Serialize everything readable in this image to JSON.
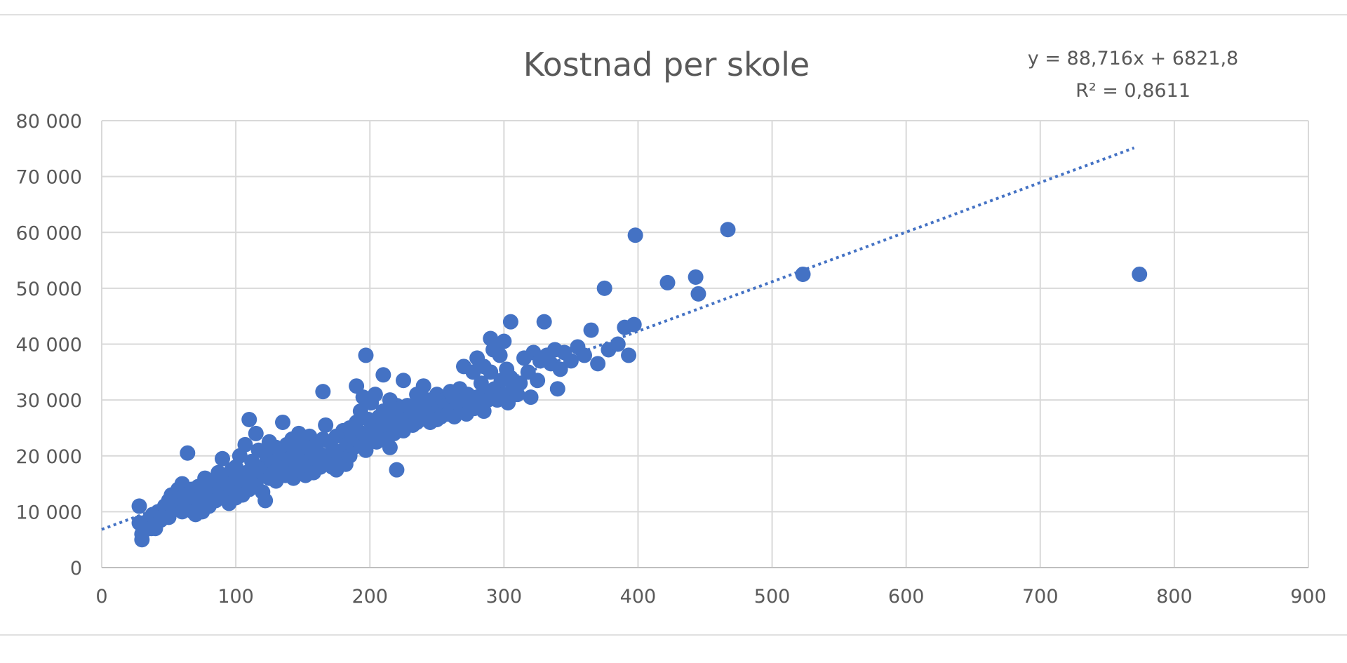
{
  "chart_data": {
    "type": "scatter",
    "title": "Kostnad per skole",
    "xlabel": "",
    "ylabel": "",
    "xlim": [
      0,
      900
    ],
    "ylim": [
      0,
      80000
    ],
    "x_ticks": [
      0,
      100,
      200,
      300,
      400,
      500,
      600,
      700,
      800,
      900
    ],
    "x_tick_labels": [
      "0",
      "100",
      "200",
      "300",
      "400",
      "500",
      "600",
      "700",
      "800",
      "900"
    ],
    "y_ticks": [
      0,
      10000,
      20000,
      30000,
      40000,
      50000,
      60000,
      70000,
      80000
    ],
    "y_tick_labels": [
      "0",
      "10 000",
      "20 000",
      "30 000",
      "40 000",
      "50 000",
      "60 000",
      "70 000",
      "80 000"
    ],
    "grid": true,
    "legend": "none",
    "colors": {
      "points": "#4472c4",
      "trendline": "#4472c4",
      "grid": "#d9d9d9",
      "text": "#595959"
    },
    "trendline": {
      "type": "linear",
      "slope": 88.716,
      "intercept": 6821.8,
      "x_range": [
        0,
        770
      ],
      "equation_label": "y = 88,716x + 6821,8",
      "r2_label": "R² = 0,8611"
    },
    "points": [
      [
        28,
        11000
      ],
      [
        28,
        8000
      ],
      [
        30,
        6000
      ],
      [
        30,
        5000
      ],
      [
        32,
        7500
      ],
      [
        35,
        8500
      ],
      [
        37,
        7000
      ],
      [
        38,
        9500
      ],
      [
        40,
        7000
      ],
      [
        42,
        10000
      ],
      [
        44,
        8500
      ],
      [
        45,
        9000
      ],
      [
        47,
        11000
      ],
      [
        48,
        10000
      ],
      [
        50,
        12000
      ],
      [
        50,
        9000
      ],
      [
        52,
        13000
      ],
      [
        53,
        10500
      ],
      [
        55,
        11500
      ],
      [
        57,
        14000
      ],
      [
        58,
        12500
      ],
      [
        60,
        15000
      ],
      [
        60,
        10000
      ],
      [
        62,
        13000
      ],
      [
        63,
        11000
      ],
      [
        64,
        20500
      ],
      [
        65,
        12000
      ],
      [
        67,
        14000
      ],
      [
        68,
        10000
      ],
      [
        70,
        12500
      ],
      [
        70,
        9500
      ],
      [
        72,
        14500
      ],
      [
        73,
        11500
      ],
      [
        75,
        13000
      ],
      [
        75,
        10000
      ],
      [
        77,
        16000
      ],
      [
        78,
        12000
      ],
      [
        80,
        14000
      ],
      [
        80,
        11000
      ],
      [
        82,
        15000
      ],
      [
        83,
        13000
      ],
      [
        85,
        12000
      ],
      [
        87,
        17000
      ],
      [
        88,
        14000
      ],
      [
        90,
        19500
      ],
      [
        90,
        13000
      ],
      [
        92,
        15500
      ],
      [
        93,
        12500
      ],
      [
        95,
        16000
      ],
      [
        95,
        11500
      ],
      [
        97,
        17500
      ],
      [
        98,
        14000
      ],
      [
        100,
        18000
      ],
      [
        100,
        12500
      ],
      [
        102,
        16000
      ],
      [
        103,
        20000
      ],
      [
        105,
        15000
      ],
      [
        105,
        13000
      ],
      [
        107,
        22000
      ],
      [
        108,
        17000
      ],
      [
        110,
        26500
      ],
      [
        110,
        14000
      ],
      [
        112,
        19000
      ],
      [
        113,
        16500
      ],
      [
        115,
        24000
      ],
      [
        115,
        15000
      ],
      [
        117,
        21000
      ],
      [
        118,
        18000
      ],
      [
        120,
        13500
      ],
      [
        120,
        17000
      ],
      [
        122,
        12000
      ],
      [
        123,
        20000
      ],
      [
        125,
        22500
      ],
      [
        125,
        16000
      ],
      [
        127,
        18500
      ],
      [
        128,
        17000
      ],
      [
        130,
        21500
      ],
      [
        130,
        15500
      ],
      [
        132,
        19000
      ],
      [
        133,
        17500
      ],
      [
        135,
        26000
      ],
      [
        135,
        20500
      ],
      [
        137,
        16500
      ],
      [
        138,
        22000
      ],
      [
        140,
        18000
      ],
      [
        140,
        19500
      ],
      [
        142,
        23000
      ],
      [
        143,
        16000
      ],
      [
        145,
        21000
      ],
      [
        145,
        18500
      ],
      [
        147,
        24000
      ],
      [
        148,
        17500
      ],
      [
        150,
        20000
      ],
      [
        150,
        22500
      ],
      [
        152,
        16500
      ],
      [
        153,
        19000
      ],
      [
        155,
        23500
      ],
      [
        155,
        18000
      ],
      [
        157,
        21500
      ],
      [
        158,
        17000
      ],
      [
        160,
        22000
      ],
      [
        160,
        19500
      ],
      [
        162,
        20500
      ],
      [
        163,
        18000
      ],
      [
        165,
        31500
      ],
      [
        165,
        23000
      ],
      [
        167,
        25500
      ],
      [
        168,
        20000
      ],
      [
        170,
        19000
      ],
      [
        170,
        22500
      ],
      [
        172,
        18000
      ],
      [
        173,
        21000
      ],
      [
        175,
        17500
      ],
      [
        175,
        23500
      ],
      [
        177,
        20000
      ],
      [
        178,
        19000
      ],
      [
        180,
        24500
      ],
      [
        180,
        21000
      ],
      [
        182,
        18500
      ],
      [
        183,
        22000
      ],
      [
        185,
        25000
      ],
      [
        185,
        20000
      ],
      [
        187,
        23500
      ],
      [
        188,
        21500
      ],
      [
        190,
        32500
      ],
      [
        190,
        26000
      ],
      [
        192,
        22500
      ],
      [
        193,
        28000
      ],
      [
        195,
        30500
      ],
      [
        195,
        24000
      ],
      [
        197,
        38000
      ],
      [
        197,
        21000
      ],
      [
        199,
        26500
      ],
      [
        200,
        23000
      ],
      [
        201,
        29500
      ],
      [
        202,
        25000
      ],
      [
        204,
        31000
      ],
      [
        205,
        22500
      ],
      [
        207,
        27000
      ],
      [
        208,
        24500
      ],
      [
        210,
        34500
      ],
      [
        210,
        28000
      ],
      [
        212,
        25500
      ],
      [
        213,
        23000
      ],
      [
        215,
        30000
      ],
      [
        215,
        21500
      ],
      [
        217,
        27500
      ],
      [
        218,
        24000
      ],
      [
        220,
        17500
      ],
      [
        220,
        29000
      ],
      [
        222,
        26000
      ],
      [
        223,
        28500
      ],
      [
        225,
        33500
      ],
      [
        225,
        24500
      ],
      [
        227,
        26500
      ],
      [
        228,
        29000
      ],
      [
        230,
        27000
      ],
      [
        232,
        25500
      ],
      [
        233,
        28000
      ],
      [
        235,
        31000
      ],
      [
        235,
        26000
      ],
      [
        237,
        27500
      ],
      [
        238,
        29500
      ],
      [
        240,
        32500
      ],
      [
        240,
        27000
      ],
      [
        242,
        26500
      ],
      [
        243,
        30000
      ],
      [
        245,
        28000
      ],
      [
        245,
        26000
      ],
      [
        247,
        29500
      ],
      [
        248,
        27500
      ],
      [
        250,
        31000
      ],
      [
        250,
        26500
      ],
      [
        252,
        28500
      ],
      [
        253,
        27000
      ],
      [
        255,
        30000
      ],
      [
        257,
        29000
      ],
      [
        258,
        27500
      ],
      [
        260,
        31500
      ],
      [
        260,
        28000
      ],
      [
        262,
        30500
      ],
      [
        263,
        27000
      ],
      [
        265,
        29500
      ],
      [
        267,
        32000
      ],
      [
        268,
        28000
      ],
      [
        270,
        36000
      ],
      [
        270,
        30000
      ],
      [
        272,
        27500
      ],
      [
        273,
        31000
      ],
      [
        275,
        29000
      ],
      [
        277,
        35000
      ],
      [
        278,
        28500
      ],
      [
        280,
        37500
      ],
      [
        280,
        30500
      ],
      [
        282,
        29500
      ],
      [
        283,
        33000
      ],
      [
        285,
        36000
      ],
      [
        285,
        28000
      ],
      [
        287,
        31500
      ],
      [
        288,
        30000
      ],
      [
        290,
        41000
      ],
      [
        290,
        35000
      ],
      [
        292,
        39000
      ],
      [
        293,
        32000
      ],
      [
        295,
        30000
      ],
      [
        297,
        38000
      ],
      [
        298,
        33500
      ],
      [
        300,
        40500
      ],
      [
        300,
        31000
      ],
      [
        302,
        35500
      ],
      [
        303,
        29500
      ],
      [
        305,
        44000
      ],
      [
        305,
        34000
      ],
      [
        307,
        32500
      ],
      [
        310,
        31000
      ],
      [
        312,
        33000
      ],
      [
        315,
        37500
      ],
      [
        318,
        35000
      ],
      [
        320,
        30500
      ],
      [
        322,
        38500
      ],
      [
        325,
        33500
      ],
      [
        327,
        37000
      ],
      [
        330,
        44000
      ],
      [
        332,
        38000
      ],
      [
        335,
        36500
      ],
      [
        338,
        39000
      ],
      [
        340,
        32000
      ],
      [
        342,
        35500
      ],
      [
        345,
        38500
      ],
      [
        350,
        37000
      ],
      [
        355,
        39500
      ],
      [
        360,
        38000
      ],
      [
        365,
        42500
      ],
      [
        370,
        36500
      ],
      [
        375,
        50000
      ],
      [
        378,
        39000
      ],
      [
        385,
        40000
      ],
      [
        390,
        43000
      ],
      [
        393,
        38000
      ],
      [
        397,
        43500
      ],
      [
        398,
        59500
      ],
      [
        422,
        51000
      ],
      [
        443,
        52000
      ],
      [
        445,
        49000
      ],
      [
        467,
        60500
      ],
      [
        523,
        52500
      ],
      [
        774,
        52500
      ]
    ]
  }
}
